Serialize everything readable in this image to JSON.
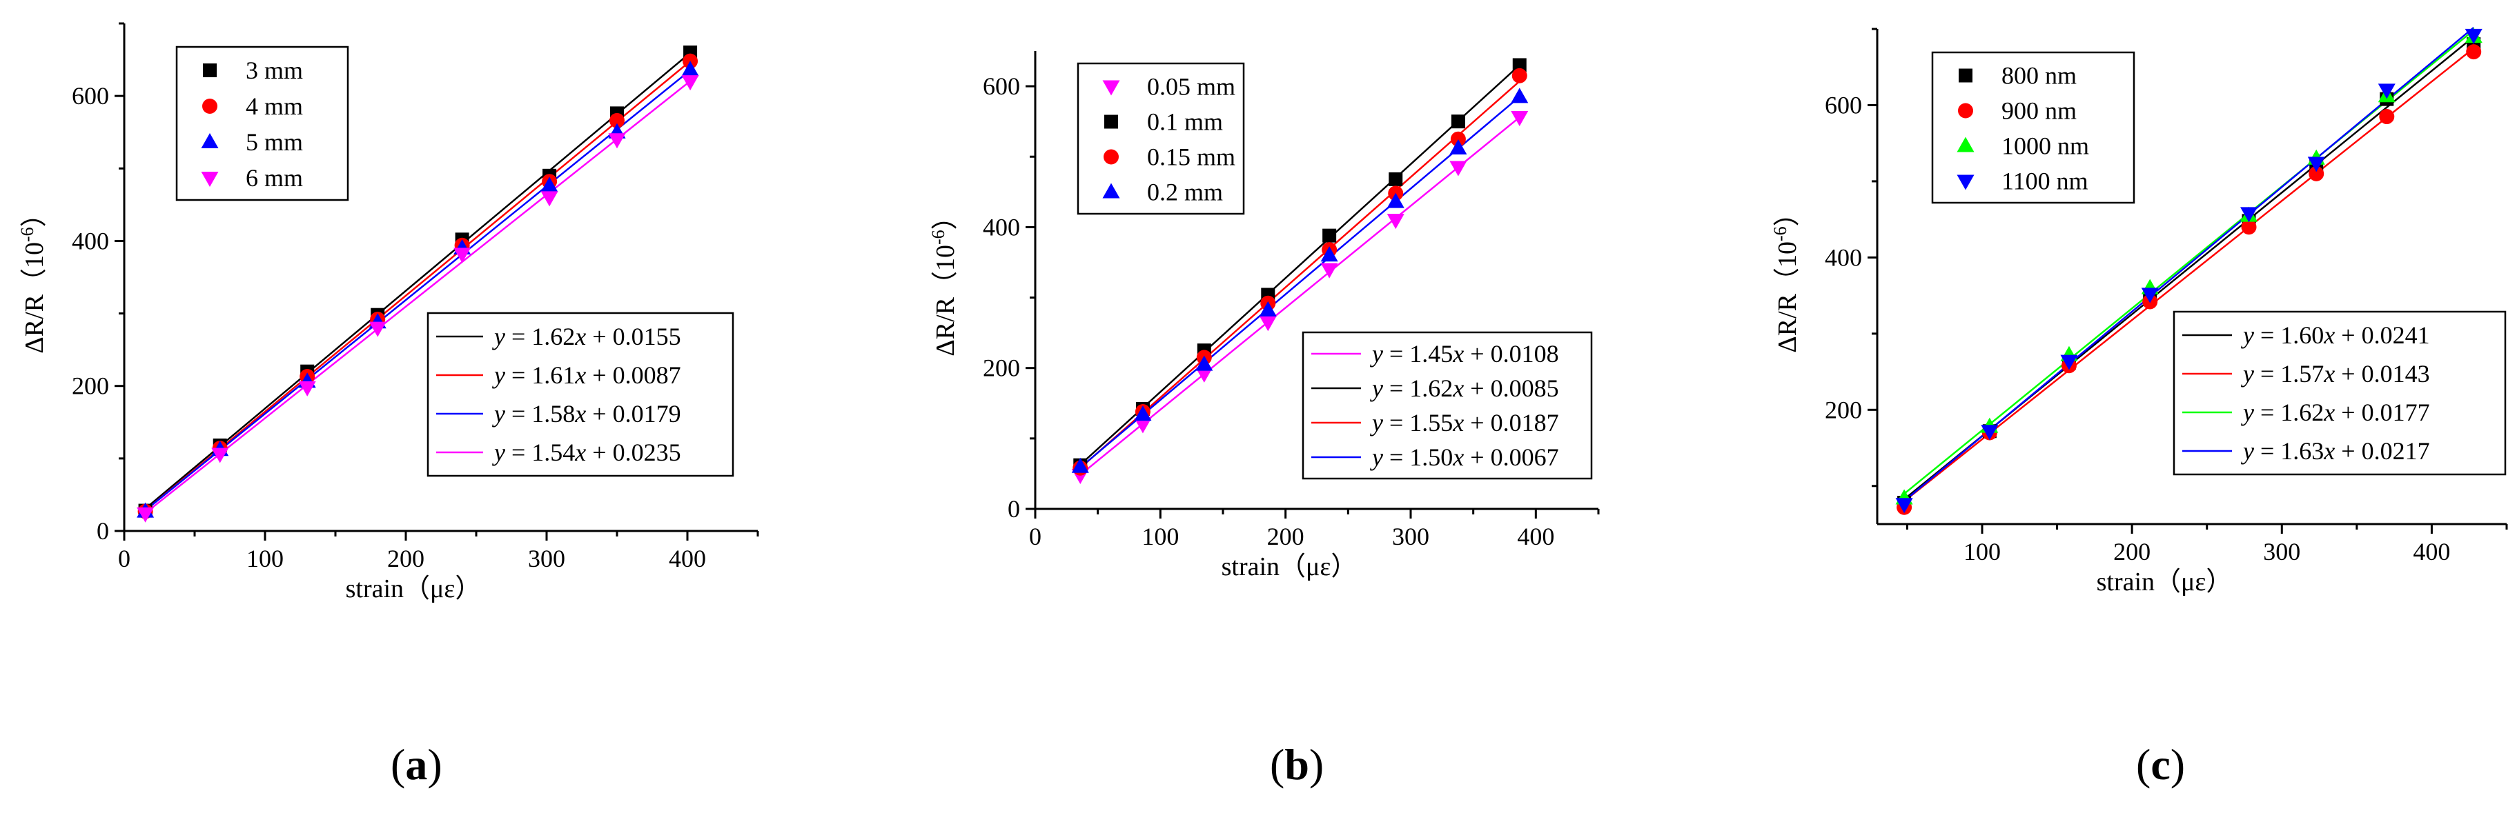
{
  "chart_data": [
    {
      "panel": "a",
      "type": "scatter",
      "panel_label_pre": "(",
      "panel_label_letter": "a",
      "panel_label_post": ")",
      "xlabel": "strain（με）",
      "ylabel_main": "ΔR/R（10",
      "ylabel_exp": "-6",
      "ylabel_end": "）",
      "xlim": [
        0,
        450
      ],
      "ylim": [
        0,
        700
      ],
      "xticks": [
        0,
        100,
        200,
        300,
        400
      ],
      "yticks": [
        0,
        200,
        400,
        600
      ],
      "x": [
        15,
        68,
        130,
        180,
        240,
        302,
        350,
        402
      ],
      "series": [
        {
          "name": "3 mm",
          "marker": "square",
          "color": "#000000",
          "values": [
            28,
            118,
            220,
            298,
            402,
            490,
            576,
            660
          ]
        },
        {
          "name": "4 mm",
          "marker": "circle",
          "color": "#ff0000",
          "values": [
            27,
            114,
            213,
            292,
            394,
            482,
            566,
            648
          ]
        },
        {
          "name": "5 mm",
          "marker": "triangle-up",
          "color": "#0000ff",
          "values": [
            27,
            112,
            206,
            288,
            390,
            476,
            550,
            636
          ]
        },
        {
          "name": "6 mm",
          "marker": "triangle-down",
          "color": "#ff00ff",
          "values": [
            24,
            106,
            198,
            280,
            382,
            460,
            540,
            620
          ]
        }
      ],
      "fits": [
        {
          "color": "#000000",
          "slope": 1.62,
          "intercept": 0.0155,
          "lhs": "y",
          "eq": " = 1.62",
          "var": "x",
          "rest": " + 0.0155"
        },
        {
          "color": "#ff0000",
          "slope": 1.61,
          "intercept": 0.0087,
          "lhs": "y",
          "eq": " = 1.61",
          "var": "x",
          "rest": " + 0.0087"
        },
        {
          "color": "#0000ff",
          "slope": 1.58,
          "intercept": 0.0179,
          "lhs": "y",
          "eq": " = 1.58",
          "var": "x",
          "rest": " + 0.0179"
        },
        {
          "color": "#ff00ff",
          "slope": 1.54,
          "intercept": 0.0235,
          "lhs": "y",
          "eq": " = 1.54",
          "var": "x",
          "rest": " + 0.0235"
        }
      ]
    },
    {
      "panel": "b",
      "type": "scatter",
      "panel_label_pre": "(",
      "panel_label_letter": "b",
      "panel_label_post": ")",
      "xlabel": "strain（με）",
      "ylabel_main": "ΔR/R（10",
      "ylabel_exp": "-6",
      "ylabel_end": "）",
      "xlim": [
        0,
        450
      ],
      "ylim": [
        0,
        650
      ],
      "xticks": [
        0,
        100,
        200,
        300,
        400
      ],
      "yticks": [
        0,
        200,
        400,
        600
      ],
      "x": [
        36,
        86,
        135,
        186,
        235,
        288,
        338,
        387
      ],
      "series": [
        {
          "name": "0.05 mm",
          "marker": "triangle-down",
          "color": "#ff00ff",
          "values": [
            48,
            120,
            192,
            265,
            340,
            410,
            485,
            556
          ]
        },
        {
          "name": "0.1 mm",
          "marker": "square",
          "color": "#000000",
          "values": [
            62,
            142,
            225,
            304,
            388,
            468,
            550,
            630
          ]
        },
        {
          "name": "0.15 mm",
          "marker": "circle",
          "color": "#ff0000",
          "values": [
            58,
            138,
            215,
            292,
            368,
            448,
            525,
            615
          ]
        },
        {
          "name": "0.2 mm",
          "marker": "triangle-up",
          "color": "#0000ff",
          "values": [
            60,
            134,
            205,
            282,
            360,
            436,
            512,
            585
          ]
        }
      ],
      "fits": [
        {
          "color": "#ff00ff",
          "slope": 1.45,
          "intercept": 0.0108,
          "lhs": "y",
          "eq": " = 1.45",
          "var": "x",
          "rest": " + 0.0108"
        },
        {
          "color": "#000000",
          "slope": 1.62,
          "intercept": 0.0085,
          "lhs": "y",
          "eq": " = 1.62",
          "var": "x",
          "rest": " + 0.0085"
        },
        {
          "color": "#ff0000",
          "slope": 1.55,
          "intercept": 0.0187,
          "lhs": "y",
          "eq": " = 1.55",
          "var": "x",
          "rest": " + 0.0187"
        },
        {
          "color": "#0000ff",
          "slope": 1.5,
          "intercept": 0.0067,
          "lhs": "y",
          "eq": " = 1.50",
          "var": "x",
          "rest": " + 0.0067"
        }
      ]
    },
    {
      "panel": "c",
      "type": "scatter",
      "panel_label_pre": "(",
      "panel_label_letter": "c",
      "panel_label_post": ")",
      "xlabel": "strain（με）",
      "ylabel_main": "ΔR/R（10",
      "ylabel_exp": "-6",
      "ylabel_end": "）",
      "xlim": [
        30,
        450
      ],
      "ylim": [
        50,
        700
      ],
      "xticks": [
        100,
        200,
        300,
        400
      ],
      "yticks": [
        200,
        400,
        600
      ],
      "x": [
        48,
        105,
        158,
        212,
        278,
        323,
        370,
        428
      ],
      "series": [
        {
          "name": "800 nm",
          "marker": "square",
          "color": "#000000",
          "values": [
            78,
            172,
            262,
            350,
            448,
            520,
            608,
            680
          ]
        },
        {
          "name": "900 nm",
          "marker": "circle",
          "color": "#ff0000",
          "values": [
            72,
            170,
            258,
            342,
            440,
            510,
            585,
            670
          ]
        },
        {
          "name": "1000 nm",
          "marker": "triangle-up",
          "color": "#00ff00",
          "values": [
            84,
            178,
            272,
            360,
            455,
            530,
            612,
            690
          ]
        },
        {
          "name": "1100 nm",
          "marker": "triangle-down",
          "color": "#0000ff",
          "values": [
            76,
            172,
            264,
            352,
            458,
            524,
            620,
            692
          ]
        }
      ],
      "fits": [
        {
          "color": "#000000",
          "slope": 1.6,
          "intercept": 0.0241,
          "lhs": "y",
          "eq": " = 1.60",
          "var": "x",
          "rest": " + 0.0241"
        },
        {
          "color": "#ff0000",
          "slope": 1.57,
          "intercept": 0.0143,
          "lhs": "y",
          "eq": " = 1.57",
          "var": "x",
          "rest": " + 0.0143"
        },
        {
          "color": "#00ff00",
          "slope": 1.62,
          "intercept": 0.0177,
          "lhs": "y",
          "eq": " = 1.62",
          "var": "x",
          "rest": " + 0.0177"
        },
        {
          "color": "#0000ff",
          "slope": 1.63,
          "intercept": 0.0217,
          "lhs": "y",
          "eq": " = 1.63",
          "var": "x",
          "rest": " + 0.0217"
        }
      ]
    }
  ]
}
